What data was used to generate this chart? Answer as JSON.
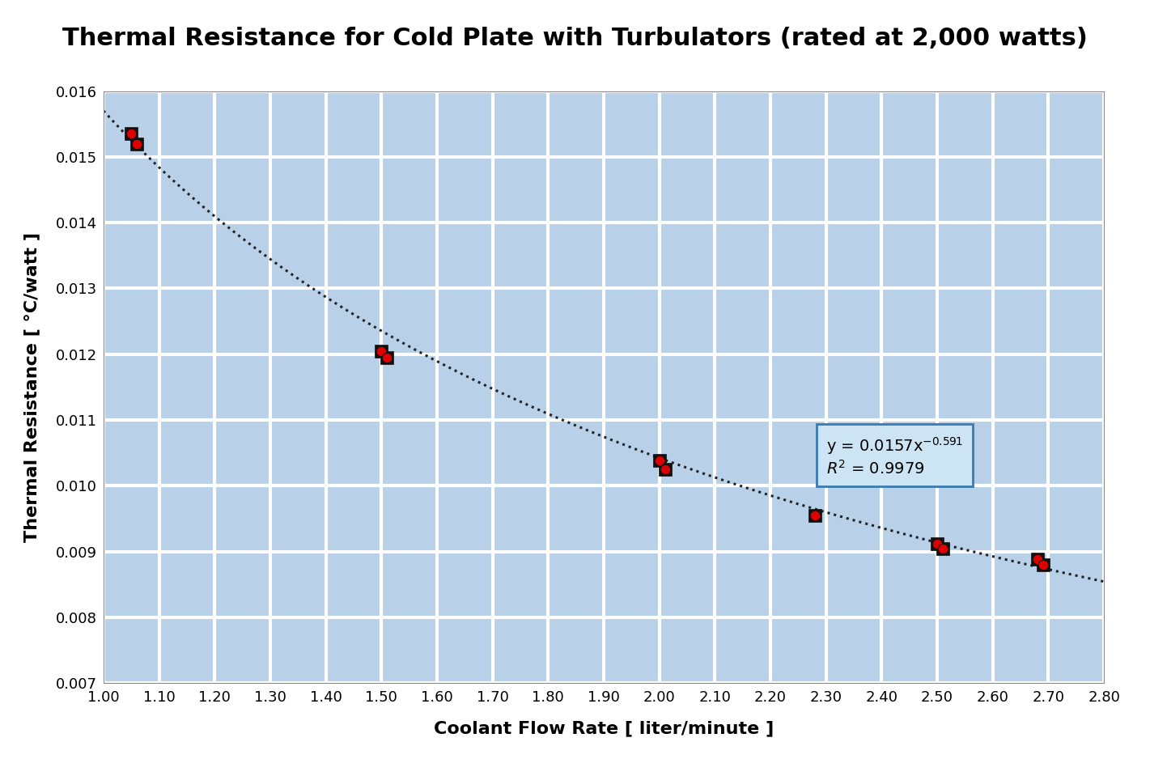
{
  "title": "Thermal Resistance for Cold Plate with Turbulators (rated at 2,000 watts)",
  "xlabel": "Coolant Flow Rate [ liter/minute ]",
  "ylabel": "Thermal Resistance [ °C/watt ]",
  "background_color": "#b8d0e8",
  "grid_color": "#ffffff",
  "data_points": [
    [
      1.05,
      0.01535
    ],
    [
      1.06,
      0.0152
    ],
    [
      1.5,
      0.01205
    ],
    [
      1.51,
      0.01195
    ],
    [
      2.0,
      0.01038
    ],
    [
      2.01,
      0.01025
    ],
    [
      2.28,
      0.00955
    ],
    [
      2.5,
      0.00912
    ],
    [
      2.51,
      0.00905
    ],
    [
      2.68,
      0.00888
    ],
    [
      2.69,
      0.0088
    ]
  ],
  "fit_coeff": 0.0157,
  "fit_exp": -0.591,
  "r_squared": 0.9979,
  "xlim": [
    1.0,
    2.8
  ],
  "ylim": [
    0.007,
    0.016
  ],
  "xticks": [
    1.0,
    1.1,
    1.2,
    1.3,
    1.4,
    1.5,
    1.6,
    1.7,
    1.8,
    1.9,
    2.0,
    2.1,
    2.2,
    2.3,
    2.4,
    2.5,
    2.6,
    2.7,
    2.8
  ],
  "yticks": [
    0.007,
    0.008,
    0.009,
    0.01,
    0.011,
    0.012,
    0.013,
    0.014,
    0.015,
    0.016
  ],
  "marker_face_color": "#dd0000",
  "marker_edge_color": "#111111",
  "marker_size": 9,
  "line_color": "#222222",
  "title_fontsize": 22,
  "axis_label_fontsize": 16,
  "tick_fontsize": 13,
  "fig_bg_color": "#ffffff",
  "annotation_box_facecolor": "#cde4f5",
  "annotation_box_edgecolor": "#3a7ab0",
  "annotation_fontsize": 14
}
